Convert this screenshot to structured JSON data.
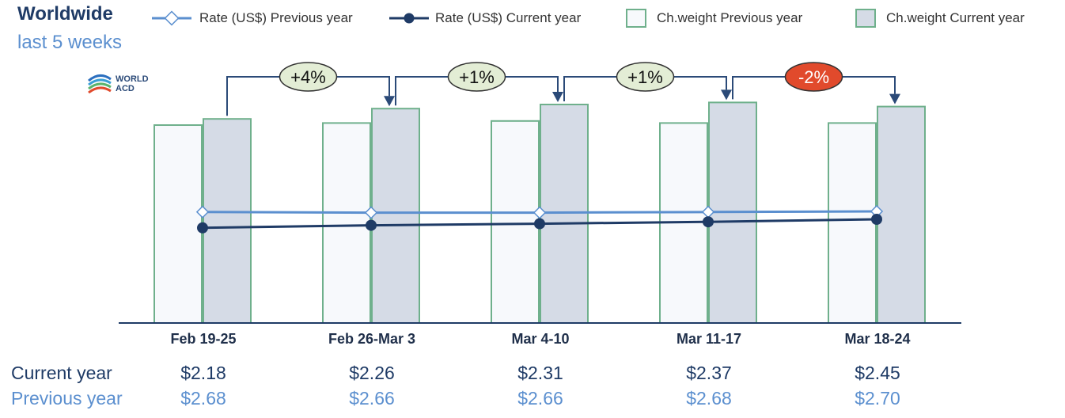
{
  "title": "Worldwide",
  "subtitle": "last 5 weeks",
  "logo": {
    "line1": "WORLD",
    "line2": "ACD"
  },
  "legend": [
    {
      "label": "Rate (US$) Previous year",
      "kind": "line-open",
      "color": "#5b8fcf"
    },
    {
      "label": "Rate (US$) Current year",
      "kind": "line-filled",
      "color": "#1f3b66"
    },
    {
      "label": "Ch.weight Previous year",
      "kind": "box",
      "fill": "#f7f9fc",
      "stroke": "#6fb08c"
    },
    {
      "label": "Ch.weight Current year",
      "kind": "box",
      "fill": "#d5dbe6",
      "stroke": "#6fb08c"
    }
  ],
  "table": {
    "current_label": "Current year",
    "previous_label": "Previous year",
    "current": [
      "$2.18",
      "$2.26",
      "$2.31",
      "$2.37",
      "$2.45"
    ],
    "previous": [
      "$2.68",
      "$2.66",
      "$2.66",
      "$2.68",
      "$2.70"
    ]
  },
  "chart_data": {
    "type": "bar",
    "categories": [
      "Feb 19-25",
      "Feb 26-Mar 3",
      "Mar 4-10",
      "Mar 11-17",
      "Mar 18-24"
    ],
    "series": [
      {
        "name": "Ch.weight Previous year",
        "type": "bar",
        "values": [
          100,
          101,
          102,
          101,
          101
        ]
      },
      {
        "name": "Ch.weight Current year",
        "type": "bar",
        "values": [
          103,
          108,
          110,
          111,
          109
        ]
      },
      {
        "name": "Rate (US$) Previous year",
        "type": "line",
        "values": [
          2.68,
          2.66,
          2.66,
          2.68,
          2.7
        ]
      },
      {
        "name": "Rate (US$) Current year",
        "type": "line",
        "values": [
          2.18,
          2.26,
          2.31,
          2.37,
          2.45
        ]
      }
    ],
    "changes": [
      "+4%",
      "+1%",
      "+1%",
      "-2%"
    ],
    "change_colors": [
      "#e3edd5",
      "#e3edd5",
      "#e3edd5",
      "#e14a2c"
    ],
    "colors": {
      "rate_prev": "#5b8fcf",
      "rate_cur": "#1f3b66",
      "bar_stroke": "#6fb08c",
      "bar_prev_fill": "#f7f9fc",
      "bar_cur_fill": "#d5dbe6",
      "arrow": "#2b4a78"
    }
  }
}
